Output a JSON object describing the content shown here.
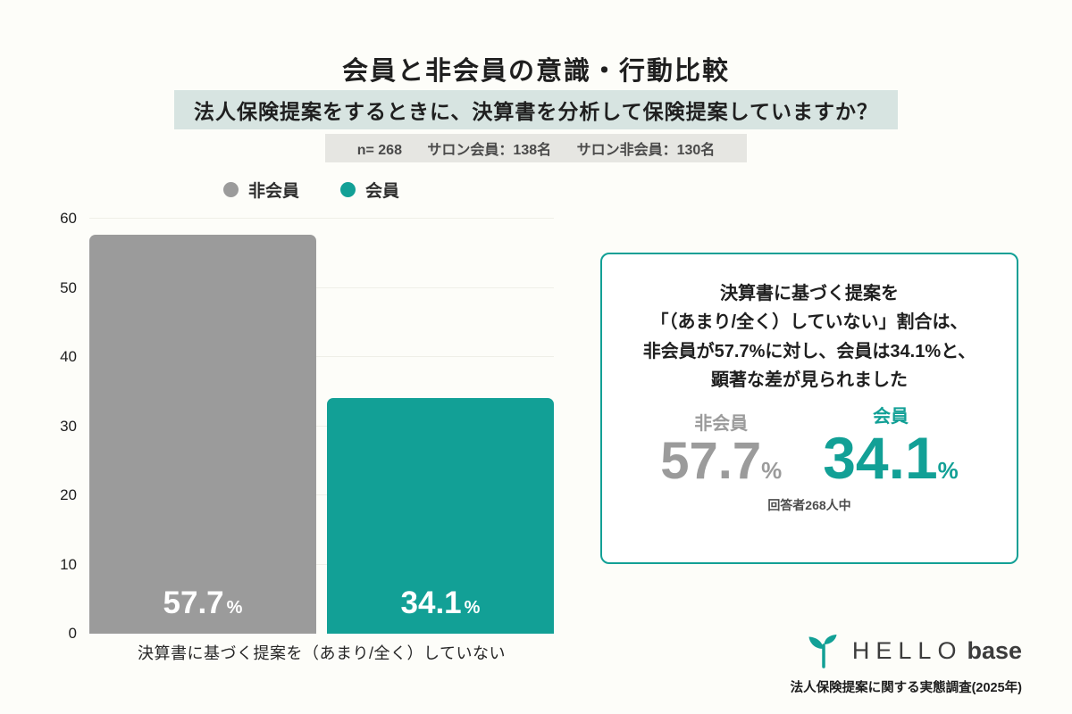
{
  "header": {
    "title": "会員と非会員の意識・行動比較",
    "subtitle": "法人保険提案をするときに、決算書を分析して保険提案していますか？",
    "sample": {
      "n": "n= 268",
      "member": "サロン会員：138名",
      "nonmember": "サロン非会員：130名"
    }
  },
  "legend": [
    {
      "label": "非会員",
      "color": "#9b9b9b"
    },
    {
      "label": "会員",
      "color": "#12a096"
    }
  ],
  "chart_data": {
    "type": "bar",
    "title": "会員と非会員の意識・行動比較",
    "question": "法人保険提案をするときに、決算書を分析して保険提案していますか？",
    "categories": [
      "決算書に基づく提案を（あまり/全く）していない"
    ],
    "series": [
      {
        "name": "非会員",
        "values": [
          57.7
        ],
        "label": "57.7",
        "unit": "%",
        "color": "#9b9b9b"
      },
      {
        "name": "会員",
        "values": [
          34.1
        ],
        "label": "34.1",
        "unit": "%",
        "color": "#12a096"
      }
    ],
    "ylim": [
      0,
      60
    ],
    "yticks": [
      0,
      10,
      20,
      30,
      40,
      50,
      60
    ],
    "grid": true,
    "legend_position": "top-left"
  },
  "callout": {
    "lines": [
      "決算書に基づく提案を",
      "「（あまり/全く）していない」割合は、",
      "非会員が57.7%に対し、会員は34.1%と、",
      "顕著な差が見られました"
    ],
    "stats": [
      {
        "label": "非会員",
        "value": "57.7",
        "unit": "%",
        "color": "#9b9b9b"
      },
      {
        "label": "会員",
        "value": "34.1",
        "unit": "%",
        "color": "#12a096"
      }
    ],
    "footnote": "回答者268人中"
  },
  "footer": {
    "brand_hello": "HELLO",
    "brand_base": "base",
    "source": "法人保険提案に関する実態調査(2025年)"
  },
  "colors": {
    "background": "#fdfdf9",
    "subtitle_bg": "#d7e4e1",
    "sample_bg": "#e6e6e2",
    "teal": "#12a096",
    "gray": "#9b9b9b"
  }
}
